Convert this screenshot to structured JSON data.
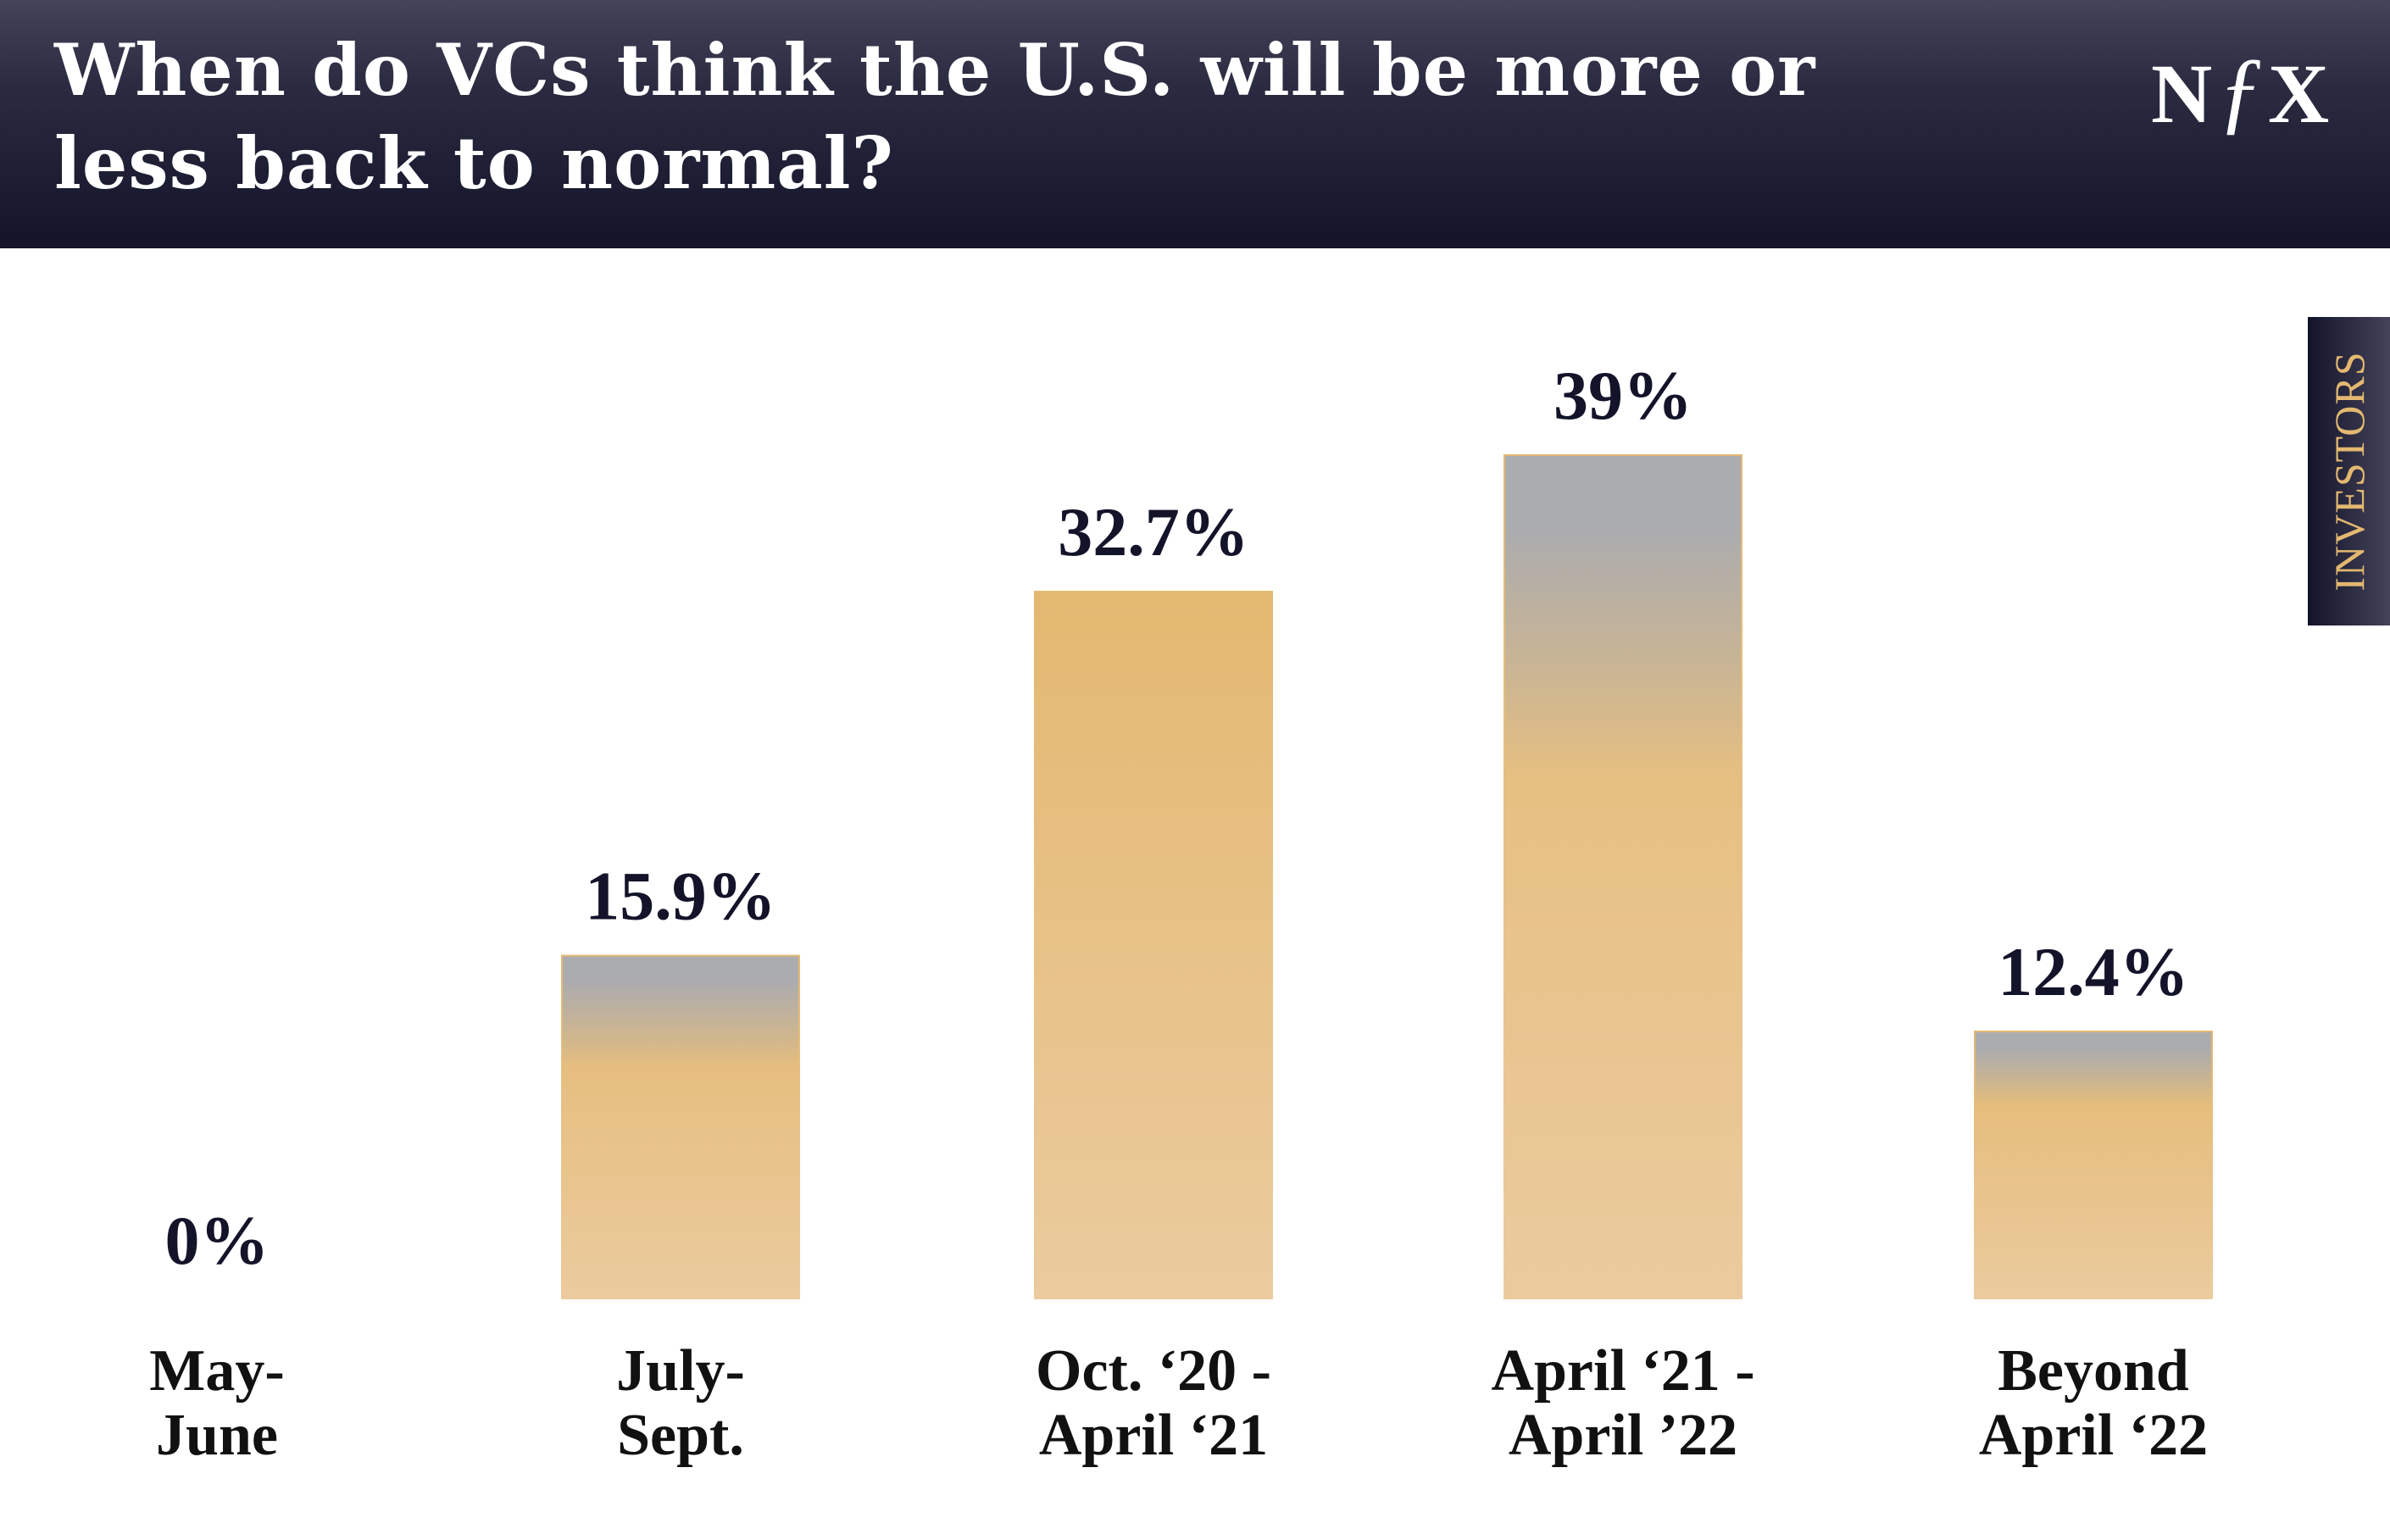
{
  "header": {
    "title": "When do VCs think the U.S. will be more or less back to normal?",
    "logo": "NfX"
  },
  "tab": {
    "label": "INVESTORS"
  },
  "colors": {
    "header": "#13132a",
    "bar": "#e4bb78",
    "bar_bottom": "#ebcb9e",
    "bar_top_fade": "#abacb0",
    "tab_text": "#e3b870"
  },
  "chart_data": {
    "type": "bar",
    "title": "When do VCs think the U.S. will be more or less back to normal?",
    "categories": [
      [
        "May-",
        "June"
      ],
      [
        "July-",
        "Sept."
      ],
      [
        "Oct. ‘20 -",
        "April ‘21"
      ],
      [
        "April ‘21 -",
        "April ’22"
      ],
      [
        "Beyond",
        "April ‘22"
      ]
    ],
    "values": [
      0,
      15.9,
      32.7,
      39,
      12.4
    ],
    "value_labels": [
      "0%",
      "15.9%",
      "32.7%",
      "39%",
      "12.4%"
    ],
    "ylim": [
      0,
      40
    ],
    "grid": false,
    "legend": "none"
  }
}
